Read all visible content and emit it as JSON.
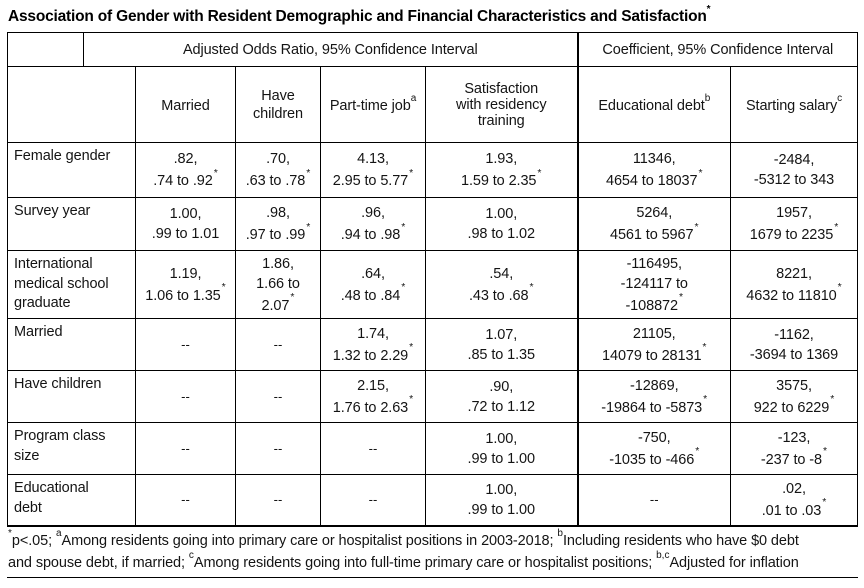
{
  "title": {
    "text": "Association of Gender with Resident Demographic and Financial Characteristics and Satisfaction",
    "superscript": "*"
  },
  "table": {
    "section_headers": [
      {
        "label": "Adjusted Odds Ratio, 95% Confidence Interval"
      },
      {
        "label": "Coefficient, 95% Confidence Interval"
      }
    ],
    "column_headers": [
      {
        "label": "Married",
        "superscript": ""
      },
      {
        "label": "Have children",
        "superscript": ""
      },
      {
        "label": "Part-time job",
        "superscript": "a"
      },
      {
        "label": "Satisfaction with residency training",
        "superscript": ""
      },
      {
        "label": "Educational debt",
        "superscript": "b"
      },
      {
        "label": "Starting salary",
        "superscript": "c"
      }
    ],
    "empty_cell_text": "--",
    "rows": [
      {
        "label": "Female gender",
        "cells": [
          {
            "estimate": ".82,",
            "ci": ".74 to .92",
            "sig": true
          },
          {
            "estimate": ".70,",
            "ci": ".63 to .78",
            "sig": true
          },
          {
            "estimate": "4.13,",
            "ci": "2.95 to 5.77",
            "sig": true
          },
          {
            "estimate": "1.93,",
            "ci": "1.59 to 2.35",
            "sig": true
          },
          {
            "estimate": "11346,",
            "ci": "4654 to 18037",
            "sig": true
          },
          {
            "estimate": "-2484,",
            "ci": "-5312 to 343",
            "sig": false
          }
        ]
      },
      {
        "label": "Survey year",
        "cells": [
          {
            "estimate": "1.00,",
            "ci": ".99 to 1.01",
            "sig": false
          },
          {
            "estimate": ".98,",
            "ci": ".97 to .99",
            "sig": true
          },
          {
            "estimate": ".96,",
            "ci": ".94 to .98",
            "sig": true
          },
          {
            "estimate": "1.00,",
            "ci": ".98 to 1.02",
            "sig": false
          },
          {
            "estimate": "5264,",
            "ci": "4561 to 5967",
            "sig": true
          },
          {
            "estimate": "1957,",
            "ci": "1679 to 2235",
            "sig": true
          }
        ]
      },
      {
        "label": "International medical school graduate",
        "cells": [
          {
            "estimate": "1.19,",
            "ci": "1.06 to 1.35",
            "sig": true
          },
          {
            "estimate": "1.86,",
            "ci": "1.66 to 2.07",
            "sig": true
          },
          {
            "estimate": ".64,",
            "ci": ".48 to .84",
            "sig": true
          },
          {
            "estimate": ".54,",
            "ci": ".43 to .68",
            "sig": true
          },
          {
            "estimate": "-116495,",
            "ci": "-124117 to -108872",
            "sig": true
          },
          {
            "estimate": "8221,",
            "ci": "4632 to 11810",
            "sig": true
          }
        ]
      },
      {
        "label": "Married",
        "cells": [
          {
            "empty": true
          },
          {
            "empty": true
          },
          {
            "estimate": "1.74,",
            "ci": "1.32 to 2.29",
            "sig": true
          },
          {
            "estimate": "1.07,",
            "ci": ".85 to 1.35",
            "sig": false
          },
          {
            "estimate": "21105,",
            "ci": "14079 to 28131",
            "sig": true
          },
          {
            "estimate": "-1162,",
            "ci": "-3694 to 1369",
            "sig": false
          }
        ]
      },
      {
        "label": "Have children",
        "cells": [
          {
            "empty": true
          },
          {
            "empty": true
          },
          {
            "estimate": "2.15,",
            "ci": "1.76 to 2.63",
            "sig": true
          },
          {
            "estimate": ".90,",
            "ci": ".72 to 1.12",
            "sig": false
          },
          {
            "estimate": "-12869,",
            "ci": "-19864 to -5873",
            "sig": true
          },
          {
            "estimate": "3575,",
            "ci": "922 to 6229",
            "sig": true
          }
        ]
      },
      {
        "label": "Program class size",
        "cells": [
          {
            "empty": true
          },
          {
            "empty": true
          },
          {
            "empty": true
          },
          {
            "estimate": "1.00,",
            "ci": ".99 to 1.00",
            "sig": false
          },
          {
            "estimate": "-750,",
            "ci": "-1035 to -466",
            "sig": true
          },
          {
            "estimate": "-123,",
            "ci": "-237 to -8",
            "sig": true
          }
        ]
      },
      {
        "label": "Educational debt",
        "cells": [
          {
            "empty": true
          },
          {
            "empty": true
          },
          {
            "empty": true
          },
          {
            "estimate": "1.00,",
            "ci": ".99 to 1.00",
            "sig": false
          },
          {
            "empty": true
          },
          {
            "estimate": ".02,",
            "ci": ".01 to .03",
            "sig": true
          }
        ]
      }
    ]
  },
  "footnote": {
    "segments": [
      {
        "sup": "*",
        "text": "p<.05; "
      },
      {
        "sup": "a",
        "text": "Among residents going into primary care or hospitalist positions in 2003-2018; "
      },
      {
        "sup": "b",
        "text": "Including residents who have $0 debt and spouse debt, if married; "
      },
      {
        "sup": "c",
        "text": "Among residents going into full-time primary care or hospitalist positions; "
      },
      {
        "sup": "b,c",
        "text": "Adjusted for inflation"
      }
    ]
  }
}
